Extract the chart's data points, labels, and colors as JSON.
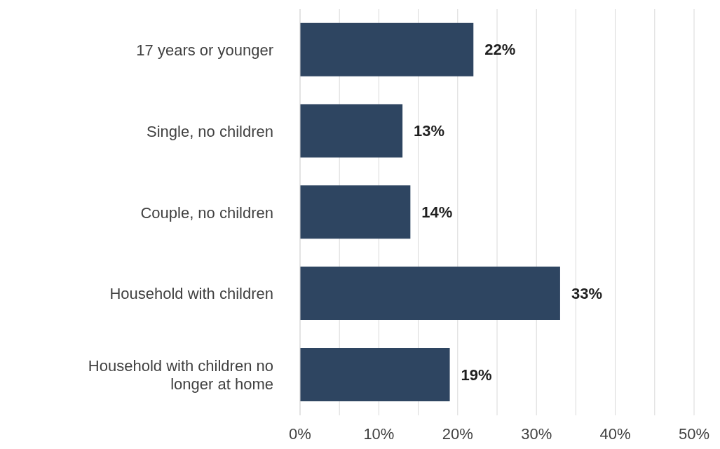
{
  "chart_data": {
    "type": "bar",
    "orientation": "horizontal",
    "categories": [
      "17 years or younger",
      "Single, no children",
      "Couple, no children",
      "Household with children",
      "Household with children no longer at home"
    ],
    "values": [
      22,
      13,
      14,
      33,
      19
    ],
    "value_labels": [
      "22%",
      "13%",
      "14%",
      "33%",
      "19%"
    ],
    "color": "#2e4561",
    "xlim": [
      0,
      50
    ],
    "xticks": [
      {
        "value": 0,
        "label": "0%"
      },
      {
        "value": 5,
        "label": null
      },
      {
        "value": 10,
        "label": "10%"
      },
      {
        "value": 15,
        "label": null
      },
      {
        "value": 20,
        "label": "20%"
      },
      {
        "value": 25,
        "label": null
      },
      {
        "value": 30,
        "label": "30%"
      },
      {
        "value": 35,
        "label": null
      },
      {
        "value": 40,
        "label": "40%"
      },
      {
        "value": 45,
        "label": null
      },
      {
        "value": 50,
        "label": "50%"
      }
    ],
    "grid": "x"
  }
}
